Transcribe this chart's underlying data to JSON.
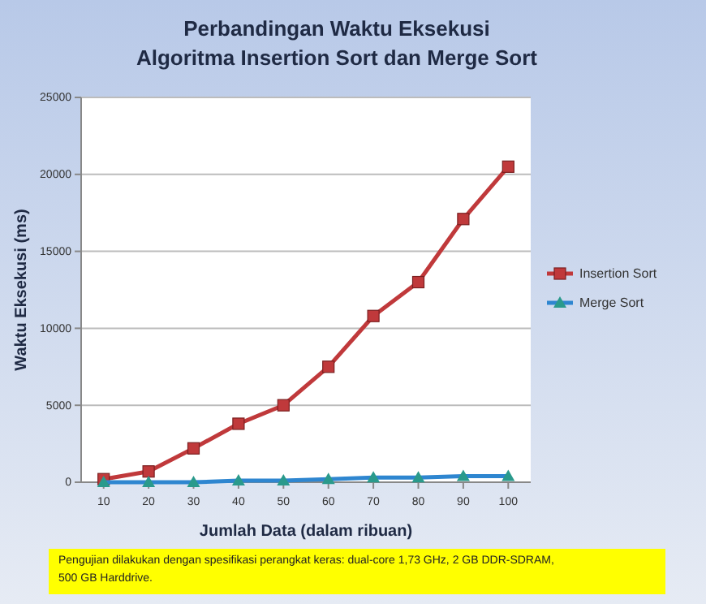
{
  "chart_data": {
    "type": "line",
    "title": "Perbandingan Waktu Eksekusi\nAlgoritma Insertion Sort dan Merge Sort",
    "xlabel": "Jumlah Data (dalam ribuan)",
    "ylabel": "Waktu Eksekusi (ms)",
    "categories": [
      "10",
      "20",
      "30",
      "40",
      "50",
      "60",
      "70",
      "80",
      "90",
      "100"
    ],
    "series": [
      {
        "name": "Insertion Sort",
        "color": "#c0393b",
        "marker": "square",
        "values": [
          200,
          700,
          2200,
          3800,
          5000,
          7500,
          10800,
          13000,
          17100,
          20500
        ]
      },
      {
        "name": "Merge Sort",
        "color": "#2e86d0",
        "marker": "triangle",
        "values": [
          0,
          0,
          0,
          100,
          100,
          200,
          300,
          300,
          400,
          400
        ]
      }
    ],
    "ylim": [
      0,
      25000
    ],
    "yticks": [
      0,
      5000,
      10000,
      15000,
      20000,
      25000
    ],
    "grid": "y",
    "legend": "right",
    "line_style": "solid",
    "annotations": [
      "Pengujian dilakukan dengan spesifikasi perangkat keras: dual-core 1,73 GHz, 2 GB DDR-SDRAM, 500 GB Harddrive."
    ]
  }
}
